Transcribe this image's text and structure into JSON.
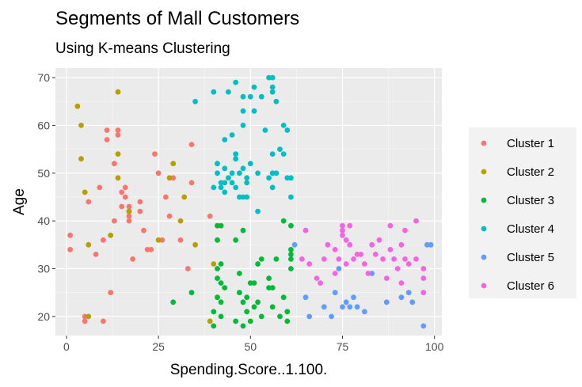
{
  "chart_data": {
    "type": "scatter",
    "title": "Segments of Mall Customers",
    "subtitle": "Using K-means Clustering",
    "xlabel": "Spending.Score..1.100.",
    "ylabel": "Age",
    "xlim": [
      -3,
      102
    ],
    "ylim": [
      16,
      72
    ],
    "x_ticks": [
      0,
      25,
      50,
      75,
      100
    ],
    "y_ticks": [
      20,
      30,
      40,
      50,
      60,
      70
    ],
    "grid": true,
    "legend_position": "right",
    "series": [
      {
        "name": "Cluster 1",
        "color": "#F8766D",
        "points": [
          [
            1,
            37
          ],
          [
            1,
            34
          ],
          [
            5,
            20
          ],
          [
            5,
            19
          ],
          [
            6,
            44
          ],
          [
            8,
            33
          ],
          [
            9,
            47
          ],
          [
            10,
            36
          ],
          [
            10,
            19
          ],
          [
            11,
            59
          ],
          [
            11,
            57
          ],
          [
            12,
            25
          ],
          [
            13,
            52
          ],
          [
            13,
            40
          ],
          [
            14,
            59
          ],
          [
            14,
            58
          ],
          [
            15,
            46
          ],
          [
            15,
            43
          ],
          [
            16,
            45
          ],
          [
            16,
            47
          ],
          [
            17,
            43
          ],
          [
            17,
            41
          ],
          [
            17,
            40
          ],
          [
            18,
            32
          ],
          [
            20,
            44
          ],
          [
            20,
            42
          ],
          [
            21,
            38
          ],
          [
            22,
            34
          ],
          [
            23,
            34
          ],
          [
            24,
            54
          ],
          [
            25,
            50
          ],
          [
            26,
            36
          ],
          [
            27,
            45
          ],
          [
            28,
            41
          ],
          [
            29,
            49
          ],
          [
            31,
            36
          ],
          [
            33,
            30
          ],
          [
            34,
            56
          ],
          [
            34,
            48
          ],
          [
            39,
            41
          ]
        ]
      },
      {
        "name": "Cluster 2",
        "color": "#B79F00",
        "points": [
          [
            3,
            64
          ],
          [
            4,
            60
          ],
          [
            4,
            53
          ],
          [
            5,
            46
          ],
          [
            6,
            20
          ],
          [
            6,
            35
          ],
          [
            12,
            37
          ],
          [
            14,
            67
          ],
          [
            14,
            54
          ],
          [
            14,
            49
          ],
          [
            17,
            42
          ],
          [
            17,
            42
          ],
          [
            25,
            36
          ],
          [
            28,
            49
          ],
          [
            29,
            52
          ],
          [
            31,
            40
          ],
          [
            32,
            45
          ],
          [
            35,
            35
          ],
          [
            39,
            19
          ],
          [
            40,
            31
          ]
        ]
      },
      {
        "name": "Cluster 3",
        "color": "#00BA38",
        "points": [
          [
            29,
            23
          ],
          [
            34,
            25
          ],
          [
            40,
            18
          ],
          [
            40,
            21
          ],
          [
            41,
            39
          ],
          [
            41,
            36
          ],
          [
            41,
            30
          ],
          [
            41,
            28
          ],
          [
            41,
            24
          ],
          [
            42,
            39
          ],
          [
            42,
            31
          ],
          [
            42,
            27
          ],
          [
            42,
            23
          ],
          [
            42,
            20
          ],
          [
            43,
            26
          ],
          [
            46,
            19
          ],
          [
            46,
            36
          ],
          [
            47,
            29
          ],
          [
            47,
            25
          ],
          [
            48,
            18
          ],
          [
            48,
            23
          ],
          [
            48,
            38
          ],
          [
            49,
            24
          ],
          [
            49,
            21
          ],
          [
            50,
            19
          ],
          [
            50,
            27
          ],
          [
            51,
            22
          ],
          [
            51,
            27
          ],
          [
            52,
            31
          ],
          [
            52,
            23
          ],
          [
            53,
            20
          ],
          [
            53,
            32
          ],
          [
            55,
            26
          ],
          [
            55,
            28
          ],
          [
            56,
            22
          ],
          [
            56,
            26
          ],
          [
            57,
            32
          ],
          [
            58,
            20
          ],
          [
            59,
            40
          ],
          [
            59,
            24
          ],
          [
            60,
            21
          ],
          [
            60,
            19
          ],
          [
            61,
            33
          ],
          [
            61,
            32
          ],
          [
            61,
            34
          ],
          [
            61,
            39
          ],
          [
            61,
            30
          ]
        ]
      },
      {
        "name": "Cluster 4",
        "color": "#00BFC4",
        "points": [
          [
            35,
            65
          ],
          [
            40,
            67
          ],
          [
            40,
            47
          ],
          [
            41,
            52
          ],
          [
            41,
            50
          ],
          [
            42,
            48
          ],
          [
            42,
            47
          ],
          [
            43,
            57
          ],
          [
            43,
            51
          ],
          [
            43,
            48
          ],
          [
            43,
            46
          ],
          [
            44,
            49
          ],
          [
            44,
            67
          ],
          [
            45,
            50
          ],
          [
            45,
            48
          ],
          [
            45,
            58
          ],
          [
            46,
            69
          ],
          [
            46,
            47
          ],
          [
            46,
            53
          ],
          [
            46,
            54
          ],
          [
            47,
            50
          ],
          [
            47,
            45
          ],
          [
            48,
            60
          ],
          [
            48,
            66
          ],
          [
            48,
            51
          ],
          [
            48,
            45
          ],
          [
            48,
            63
          ],
          [
            49,
            49
          ],
          [
            49,
            48
          ],
          [
            49,
            45
          ],
          [
            50,
            66
          ],
          [
            50,
            52
          ],
          [
            51,
            68
          ],
          [
            51,
            63
          ],
          [
            52,
            42
          ],
          [
            52,
            50
          ],
          [
            53,
            66
          ],
          [
            54,
            59
          ],
          [
            55,
            49
          ],
          [
            55,
            70
          ],
          [
            56,
            70
          ],
          [
            56,
            50
          ],
          [
            56,
            68
          ],
          [
            56,
            67
          ],
          [
            56,
            54
          ],
          [
            56,
            47
          ],
          [
            57,
            50
          ],
          [
            57,
            65
          ],
          [
            58,
            55
          ],
          [
            59,
            60
          ],
          [
            59,
            54
          ],
          [
            60,
            59
          ],
          [
            60,
            49
          ],
          [
            61,
            49
          ],
          [
            61,
            45
          ]
        ]
      },
      {
        "name": "Cluster 5",
        "color": "#619CFF",
        "points": [
          [
            62,
            35
          ],
          [
            65,
            24
          ],
          [
            66,
            20
          ],
          [
            70,
            22
          ],
          [
            72,
            20
          ],
          [
            73,
            25
          ],
          [
            74,
            30
          ],
          [
            75,
            22
          ],
          [
            76,
            23
          ],
          [
            77,
            22
          ],
          [
            78,
            24
          ],
          [
            79,
            22
          ],
          [
            81,
            21
          ],
          [
            83,
            29
          ],
          [
            87,
            23
          ],
          [
            91,
            24
          ],
          [
            93,
            25
          ],
          [
            94,
            23
          ],
          [
            97,
            18
          ],
          [
            98,
            35
          ],
          [
            99,
            35
          ]
        ]
      },
      {
        "name": "Cluster 6",
        "color": "#F564E3",
        "points": [
          [
            64,
            32
          ],
          [
            65,
            38
          ],
          [
            66,
            31
          ],
          [
            68,
            28
          ],
          [
            69,
            27
          ],
          [
            70,
            32
          ],
          [
            71,
            35
          ],
          [
            73,
            34
          ],
          [
            73,
            29
          ],
          [
            74,
            32
          ],
          [
            75,
            38
          ],
          [
            75,
            39
          ],
          [
            75,
            37
          ],
          [
            76,
            36
          ],
          [
            76,
            31
          ],
          [
            77,
            35
          ],
          [
            77,
            39
          ],
          [
            78,
            32
          ],
          [
            79,
            33
          ],
          [
            80,
            33
          ],
          [
            81,
            31
          ],
          [
            82,
            29
          ],
          [
            83,
            35
          ],
          [
            84,
            33
          ],
          [
            85,
            36
          ],
          [
            86,
            32
          ],
          [
            87,
            28
          ],
          [
            88,
            34
          ],
          [
            88,
            39
          ],
          [
            89,
            32
          ],
          [
            90,
            30
          ],
          [
            91,
            27
          ],
          [
            91,
            35
          ],
          [
            92,
            38
          ],
          [
            92,
            32
          ],
          [
            93,
            31
          ],
          [
            95,
            32
          ],
          [
            95,
            40
          ],
          [
            97,
            28
          ],
          [
            97,
            30
          ],
          [
            97,
            25
          ]
        ]
      }
    ]
  }
}
